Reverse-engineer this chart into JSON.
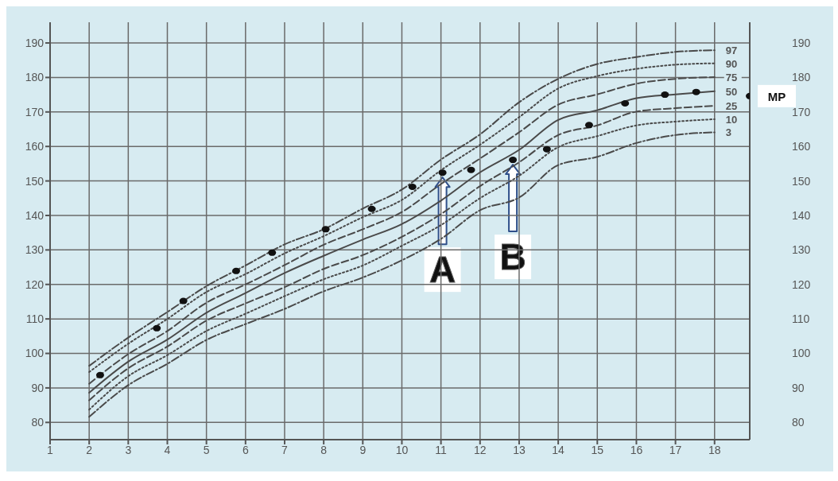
{
  "chart_data": {
    "type": "line",
    "xlim": [
      1,
      18.9
    ],
    "xticks": [
      1,
      2,
      3,
      4,
      5,
      6,
      7,
      8,
      9,
      10,
      11,
      12,
      13,
      14,
      15,
      16,
      17,
      18
    ],
    "ylim": [
      75,
      196
    ],
    "yticks": [
      80,
      90,
      100,
      110,
      120,
      130,
      140,
      150,
      160,
      170,
      180,
      190
    ],
    "y2lim": [
      75,
      196
    ],
    "y2ticks": [
      80,
      90,
      100,
      110,
      120,
      130,
      140,
      150,
      160,
      170,
      180,
      190
    ],
    "grid": true,
    "legend": false,
    "marker": "none",
    "x": [
      2,
      3,
      4,
      5,
      6,
      7,
      8,
      9,
      10,
      11,
      12,
      13,
      14,
      15,
      16,
      17,
      18
    ],
    "series": [
      {
        "name": "97",
        "color": "#4a4a4a",
        "line_style": "dashdot",
        "values": [
          96.4,
          104.6,
          112,
          119.5,
          125.5,
          131.6,
          136,
          142,
          147.5,
          156.2,
          163.5,
          172.8,
          179.6,
          183.9,
          185.9,
          187.4,
          187.9
        ]
      },
      {
        "name": "90",
        "color": "#4a4a4a",
        "line_style": "dotted",
        "values": [
          94.6,
          102.8,
          110,
          117.8,
          123,
          129,
          134,
          139.5,
          144.5,
          153.1,
          160.5,
          168.5,
          176.8,
          180.4,
          182.5,
          183.7,
          184.1
        ]
      },
      {
        "name": "75",
        "color": "#4a4a4a",
        "line_style": "dashed",
        "values": [
          91.2,
          99.8,
          106.5,
          114.7,
          120,
          125.6,
          131.5,
          136,
          141,
          149.1,
          156.5,
          164.1,
          172.1,
          175.1,
          178.2,
          179.6,
          180.1
        ]
      },
      {
        "name": "50",
        "color": "#4a4a4a",
        "line_style": "solid",
        "values": [
          88.6,
          97.6,
          104,
          111.8,
          117.5,
          123.3,
          128.3,
          133,
          137.5,
          144.3,
          152.5,
          159,
          167.7,
          170.5,
          174,
          175.1,
          176
        ]
      },
      {
        "name": "25",
        "color": "#4a4a4a",
        "line_style": "dashed",
        "values": [
          86.4,
          95.7,
          102,
          109.5,
          114.5,
          119.2,
          124.5,
          128.5,
          133.8,
          140.4,
          148.5,
          155.4,
          163.3,
          166.1,
          170.1,
          171.1,
          171.8
        ]
      },
      {
        "name": "10",
        "color": "#4a4a4a",
        "line_style": "dotted",
        "values": [
          83.7,
          93.4,
          99.5,
          106.5,
          111.5,
          116.6,
          121.5,
          125.5,
          131.2,
          137.2,
          145,
          151.5,
          159.8,
          163,
          166.1,
          167.2,
          167.9
        ]
      },
      {
        "name": "3",
        "color": "#4a4a4a",
        "line_style": "dashdot",
        "values": [
          81.6,
          90.8,
          97,
          103.9,
          108.5,
          112.9,
          118,
          122,
          127,
          133.2,
          141.5,
          145.2,
          154.6,
          157,
          161,
          163.3,
          164.1
        ]
      },
      {
        "type": "scatter",
        "color": "#111111",
        "marker": "circle",
        "x": [
          2.28,
          3.73,
          4.41,
          5.76,
          6.68,
          8.05,
          9.23,
          10.27,
          11.04,
          11.77,
          12.84,
          13.71,
          14.79,
          15.71,
          16.73,
          17.53
        ],
        "values": [
          93.7,
          107.3,
          115.2,
          123.9,
          129.2,
          136,
          141.9,
          148.3,
          152.4,
          153.2,
          156.1,
          159.2,
          166.2,
          172.5,
          175,
          175.8
        ]
      },
      {
        "type": "scatter",
        "color": "#111111",
        "marker": "circle",
        "x": [
          18.9
        ],
        "values": [
          174.6
        ]
      }
    ],
    "annotations": [
      {
        "text": "A",
        "x": 11.04,
        "y": 152.4
      },
      {
        "text": "B",
        "x": 12.84,
        "y": 156.1
      },
      {
        "text": "MP",
        "x": 18.9,
        "y": 174.6
      }
    ]
  }
}
